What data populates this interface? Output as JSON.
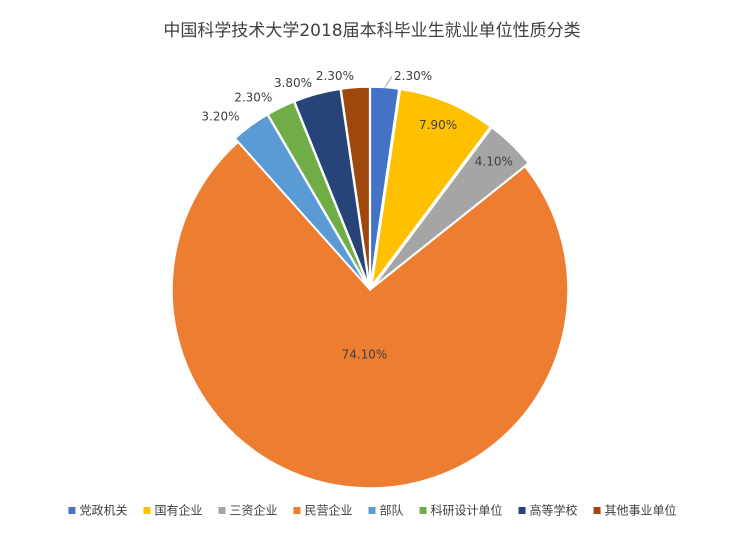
{
  "chart_data": {
    "type": "pie",
    "title": "中国科学技术大学2018届本科毕业生就业单位性质分类",
    "categories": [
      "党政机关",
      "国有企业",
      "三资企业",
      "民营企业",
      "部队",
      "科研设计单位",
      "高等学校",
      "其他事业单位"
    ],
    "values": [
      2.3,
      7.9,
      4.1,
      74.1,
      3.2,
      2.3,
      3.8,
      2.3
    ],
    "value_labels": [
      "2.30%",
      "7.90%",
      "4.10%",
      "74.10%",
      "3.20%",
      "2.30%",
      "3.80%",
      "2.30%"
    ],
    "colors": [
      "#4472c4",
      "#ffc000",
      "#a5a5a5",
      "#ed7d31",
      "#5b9bd5",
      "#70ad47",
      "#264478",
      "#9e480e"
    ],
    "legend": "bottom"
  }
}
